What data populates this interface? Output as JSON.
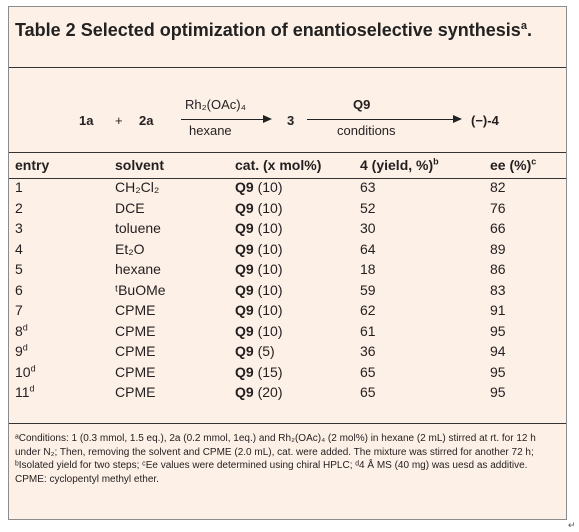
{
  "title": {
    "text": "Table 2 Selected optimization of enantioselective synthesis",
    "sup": "a",
    "end": "."
  },
  "scheme": {
    "reactant1": "1a",
    "plus": "+",
    "reactant2": "2a",
    "reagent1_top": "Rh₂(OAc)₄",
    "reagent1_bottom": "hexane",
    "intermediate": "3",
    "reagent2_top": "Q9",
    "reagent2_bottom": "conditions",
    "product": "(−)-4"
  },
  "headers": {
    "entry": "entry",
    "solvent": "solvent",
    "cat": "cat. (x mol%)",
    "yield": "4 (yield, %)",
    "yield_sup": "b",
    "ee": "ee (%)",
    "ee_sup": "c"
  },
  "rows": [
    {
      "entry": "1",
      "sup": "",
      "solvent": "CH₂Cl₂",
      "cat": "Q9",
      "amt": "(10)",
      "yield": "63",
      "ee": "82"
    },
    {
      "entry": "2",
      "sup": "",
      "solvent": "DCE",
      "cat": "Q9",
      "amt": "(10)",
      "yield": "52",
      "ee": "76"
    },
    {
      "entry": "3",
      "sup": "",
      "solvent": "toluene",
      "cat": "Q9",
      "amt": "(10)",
      "yield": "30",
      "ee": "66"
    },
    {
      "entry": "4",
      "sup": "",
      "solvent": "Et₂O",
      "cat": "Q9",
      "amt": "(10)",
      "yield": "64",
      "ee": "89"
    },
    {
      "entry": "5",
      "sup": "",
      "solvent": "hexane",
      "cat": "Q9",
      "amt": "(10)",
      "yield": "18",
      "ee": "86"
    },
    {
      "entry": "6",
      "sup": "",
      "solvent": "ᵗBuOMe",
      "cat": "Q9",
      "amt": "(10)",
      "yield": "59",
      "ee": "83"
    },
    {
      "entry": "7",
      "sup": "",
      "solvent": "CPME",
      "cat": "Q9",
      "amt": "(10)",
      "yield": "62",
      "ee": "91"
    },
    {
      "entry": "8",
      "sup": "d",
      "solvent": "CPME",
      "cat": "Q9",
      "amt": "(10)",
      "yield": "61",
      "ee": "95"
    },
    {
      "entry": "9",
      "sup": "d",
      "solvent": "CPME",
      "cat": "Q9",
      "amt": "(5)",
      "yield": "36",
      "ee": "94"
    },
    {
      "entry": "10",
      "sup": "d",
      "solvent": "CPME",
      "cat": "Q9",
      "amt": "(15)",
      "yield": "65",
      "ee": "95"
    },
    {
      "entry": "11",
      "sup": "d",
      "solvent": "CPME",
      "cat": "Q9",
      "amt": "(20)",
      "yield": "65",
      "ee": "95"
    }
  ],
  "footnote": "ᵃConditions: 1 (0.3 mmol, 1.5 eq.), 2a (0.2 mmol, 1eq.) and Rh₂(OAc)₄ (2 mol%) in hexane (2 mL) stirred at rt. for 12 h under N₂; Then, removing the solvent and CPME (2.0 mL), cat. were added. The mixture was stirred for another 72 h; ᵇIsolated yield for two steps; ᶜEe values were determined using chiral HPLC; ᵈ4 Å MS (40 mg) was uesd as additive. CPME: cyclopentyl methyl ether.",
  "return_mark": "↵"
}
